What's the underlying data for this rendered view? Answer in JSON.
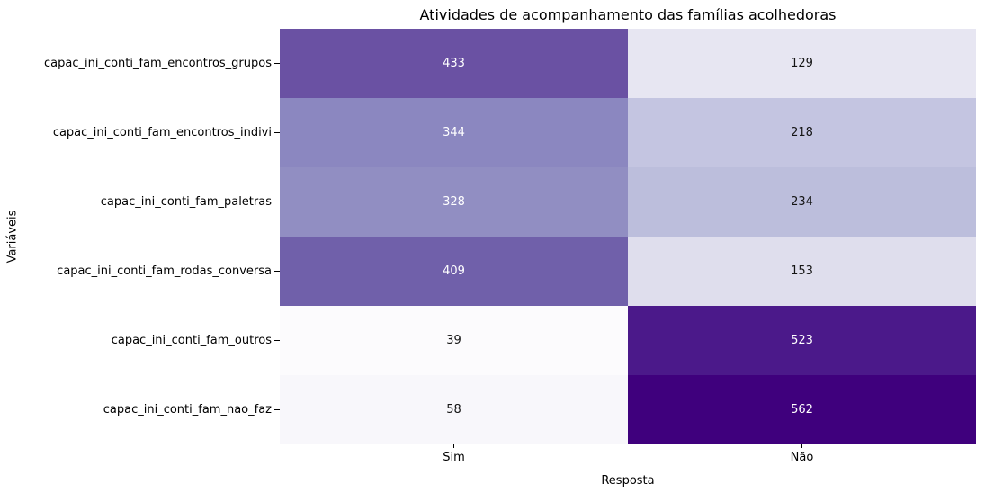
{
  "chart_data": {
    "type": "heatmap",
    "title": "Atividades de acompanhamento das famílias acolhedoras",
    "xlabel": "Resposta",
    "ylabel": "Variáveis",
    "columns": [
      "Sim",
      "Não"
    ],
    "rows": [
      {
        "label": "capac_ini_conti_fam_encontros_grupos",
        "values": [
          433,
          129
        ]
      },
      {
        "label": "capac_ini_conti_fam_encontros_indivi",
        "values": [
          344,
          218
        ]
      },
      {
        "label": "capac_ini_conti_fam_paletras",
        "values": [
          328,
          234
        ]
      },
      {
        "label": "capac_ini_conti_fam_rodas_conversa",
        "values": [
          409,
          153
        ]
      },
      {
        "label": "capac_ini_conti_fam_outros",
        "values": [
          39,
          523
        ]
      },
      {
        "label": "capac_ini_conti_fam_nao_faz",
        "values": [
          58,
          562
        ]
      }
    ],
    "colormap": "Purples",
    "vmin": 39,
    "vmax": 562,
    "cell_colors": [
      [
        "#6a51a3",
        "#e7e6f2"
      ],
      [
        "#8b87c0",
        "#c4c5e1"
      ],
      [
        "#918ec2",
        "#bcbedc"
      ],
      [
        "#7060aa",
        "#dfdeed"
      ],
      [
        "#fcfbfd",
        "#4b198a"
      ],
      [
        "#f8f7fb",
        "#3f007d"
      ]
    ],
    "cell_text_colors": [
      [
        "#ffffff",
        "#141414"
      ],
      [
        "#ffffff",
        "#141414"
      ],
      [
        "#ffffff",
        "#141414"
      ],
      [
        "#ffffff",
        "#141414"
      ],
      [
        "#141414",
        "#ffffff"
      ],
      [
        "#141414",
        "#ffffff"
      ]
    ],
    "legend": "none",
    "grid": false
  }
}
